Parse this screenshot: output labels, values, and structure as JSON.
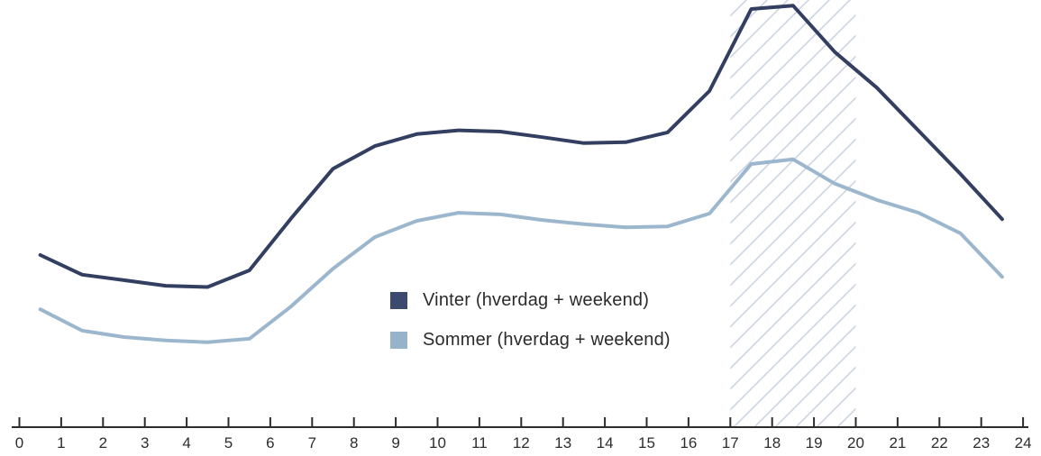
{
  "page": {
    "background": "#ffffff"
  },
  "chart_data": {
    "type": "line",
    "title": "",
    "xlabel": "",
    "ylabel": "",
    "grid": false,
    "y_axis_shown": false,
    "xlim": [
      0,
      24
    ],
    "ylim": [
      0,
      100
    ],
    "x_ticks": [
      0,
      1,
      2,
      3,
      4,
      5,
      6,
      7,
      8,
      9,
      10,
      11,
      12,
      13,
      14,
      15,
      16,
      17,
      18,
      19,
      20,
      21,
      22,
      23,
      24
    ],
    "x": [
      0.5,
      1.5,
      2.5,
      3.5,
      4.5,
      5.5,
      6.5,
      7.5,
      8.5,
      9.5,
      10.5,
      11.5,
      12.5,
      13.5,
      14.5,
      15.5,
      16.5,
      17.5,
      18.5,
      19.5,
      20.5,
      21.5,
      22.5,
      23.5
    ],
    "series": [
      {
        "name": "Vinter (hverdag + weekend)",
        "line_color": "#333f61",
        "swatch_color": "#3b4a6e",
        "values": [
          40.3,
          35.7,
          34.4,
          33.1,
          32.8,
          36.7,
          48.9,
          60.5,
          65.8,
          68.6,
          69.5,
          69.2,
          67.9,
          66.5,
          66.7,
          69.0,
          78.7,
          97.9,
          98.7,
          87.8,
          79.5,
          69.4,
          59.3,
          48.7
        ]
      },
      {
        "name": "Sommer (hverdag + weekend)",
        "line_color": "#9cb7cd",
        "swatch_color": "#96b3c9",
        "values": [
          27.6,
          22.6,
          21.1,
          20.3,
          19.9,
          20.7,
          28.3,
          37.1,
          44.5,
          48.3,
          50.2,
          49.8,
          48.5,
          47.5,
          46.8,
          47.0,
          50.0,
          61.6,
          62.7,
          57.0,
          53.2,
          50.2,
          45.4,
          35.2
        ]
      }
    ],
    "highlight_region": {
      "from": 17,
      "to": 20,
      "style": "diagonal-hatch",
      "hatch_color": "#ccd4e1"
    },
    "axis_color": "#2d2d2d",
    "tick_label_color": "#2d2d2d",
    "legend_position": "inside-bottom-left"
  }
}
